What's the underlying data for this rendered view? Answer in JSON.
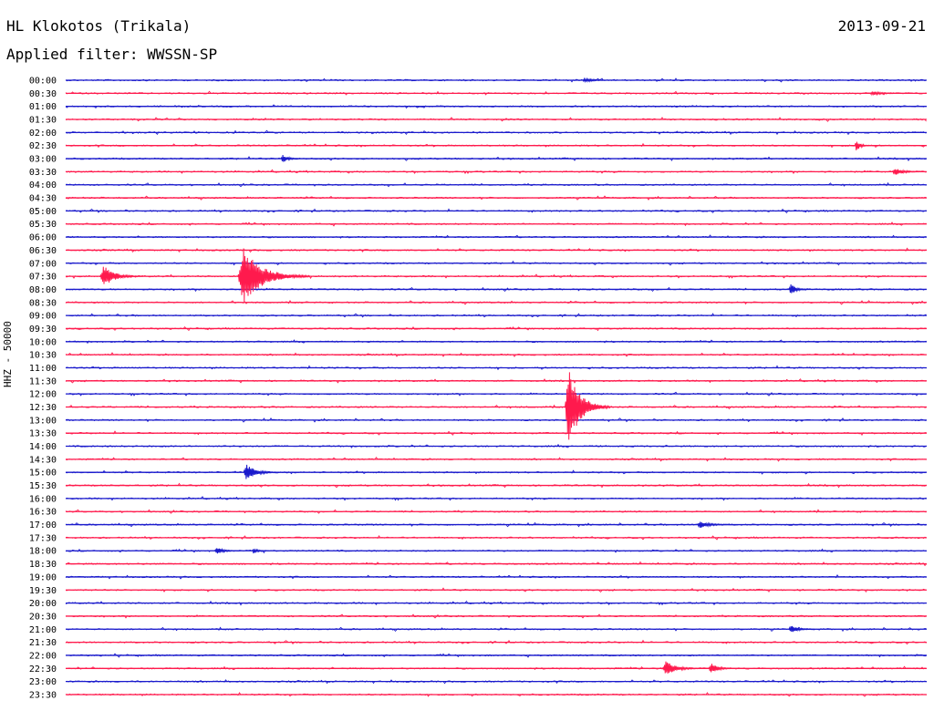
{
  "header": {
    "station": "HL Klokotos (Trikala)",
    "date": "2013-09-21",
    "filter": "Applied filter: WWSSN-SP"
  },
  "chart_data": {
    "type": "line",
    "ylabel": "HHZ - 50000",
    "colors": [
      "#1a1acc",
      "#ff1a4d"
    ],
    "rows": [
      "00:00",
      "00:30",
      "01:00",
      "01:30",
      "02:00",
      "02:30",
      "03:00",
      "03:30",
      "04:00",
      "04:30",
      "05:00",
      "05:30",
      "06:00",
      "06:30",
      "07:00",
      "07:30",
      "08:00",
      "08:30",
      "09:00",
      "09:30",
      "10:00",
      "10:30",
      "11:00",
      "11:30",
      "12:00",
      "12:30",
      "13:00",
      "13:30",
      "14:00",
      "14:30",
      "15:00",
      "15:30",
      "16:00",
      "16:30",
      "17:00",
      "17:30",
      "18:00",
      "18:30",
      "19:00",
      "19:30",
      "20:00",
      "20:30",
      "21:00",
      "21:30",
      "22:00",
      "22:30",
      "23:00",
      "23:30"
    ],
    "events": [
      {
        "row": 0,
        "minute": 18.0,
        "amp": 2.2,
        "dur": 1.2
      },
      {
        "row": 1,
        "minute": 28.0,
        "amp": 2.0,
        "dur": 1.5
      },
      {
        "row": 5,
        "minute": 27.5,
        "amp": 6.0,
        "dur": 0.6
      },
      {
        "row": 6,
        "minute": 7.5,
        "amp": 4.5,
        "dur": 0.8
      },
      {
        "row": 7,
        "minute": 28.8,
        "amp": 4.0,
        "dur": 1.2
      },
      {
        "row": 15,
        "minute": 1.2,
        "amp": 12.0,
        "dur": 1.5
      },
      {
        "row": 15,
        "minute": 6.0,
        "amp": 32.0,
        "dur": 2.5
      },
      {
        "row": 16,
        "minute": 25.2,
        "amp": 7.0,
        "dur": 0.7
      },
      {
        "row": 25,
        "minute": 17.4,
        "amp": 42.0,
        "dur": 1.6
      },
      {
        "row": 30,
        "minute": 6.2,
        "amp": 9.0,
        "dur": 1.3
      },
      {
        "row": 34,
        "minute": 22.0,
        "amp": 4.0,
        "dur": 1.3
      },
      {
        "row": 36,
        "minute": 5.2,
        "amp": 4.0,
        "dur": 0.9
      },
      {
        "row": 36,
        "minute": 6.5,
        "amp": 3.0,
        "dur": 0.6
      },
      {
        "row": 42,
        "minute": 25.2,
        "amp": 5.0,
        "dur": 0.9
      },
      {
        "row": 45,
        "minute": 20.8,
        "amp": 8.0,
        "dur": 1.4
      },
      {
        "row": 45,
        "minute": 22.4,
        "amp": 6.0,
        "dur": 1.0
      }
    ]
  }
}
